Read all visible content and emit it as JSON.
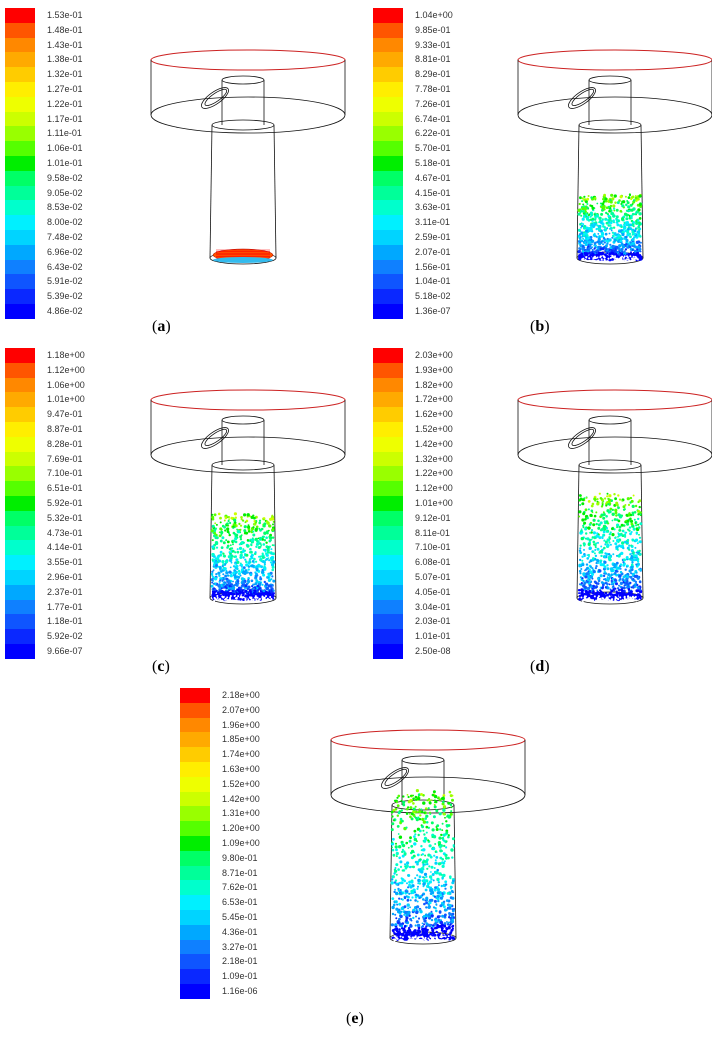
{
  "palette": [
    "#0000ff",
    "#0a28ff",
    "#0f55ff",
    "#0f80ff",
    "#00a8ff",
    "#00d4ff",
    "#00f0ff",
    "#00ffcc",
    "#00ff99",
    "#00ff66",
    "#00ee00",
    "#55ff00",
    "#99ff00",
    "#ccff00",
    "#eeff00",
    "#ffee00",
    "#ffcc00",
    "#ffaa00",
    "#ff8800",
    "#ff5500",
    "#ff0000"
  ],
  "panels": [
    {
      "id": "a",
      "caption": "a",
      "state": "packed",
      "labels": [
        "1.53e-01",
        "1.48e-01",
        "1.43e-01",
        "1.38e-01",
        "1.32e-01",
        "1.27e-01",
        "1.22e-01",
        "1.17e-01",
        "1.11e-01",
        "1.06e-01",
        "1.01e-01",
        "9.58e-02",
        "9.05e-02",
        "8.53e-02",
        "8.00e-02",
        "7.48e-02",
        "6.96e-02",
        "6.43e-02",
        "5.91e-02",
        "5.39e-02",
        "4.86e-02"
      ]
    },
    {
      "id": "b",
      "caption": "b",
      "state": "dispersed",
      "height": 0.12,
      "labels": [
        "1.04e+00",
        "9.85e-01",
        "9.33e-01",
        "8.81e-01",
        "8.29e-01",
        "7.78e-01",
        "7.26e-01",
        "6.74e-01",
        "6.22e-01",
        "5.70e-01",
        "5.18e-01",
        "4.67e-01",
        "4.15e-01",
        "3.63e-01",
        "3.11e-01",
        "2.59e-01",
        "2.07e-01",
        "1.56e-01",
        "1.04e-01",
        "5.18e-02",
        "1.36e-07"
      ]
    },
    {
      "id": "c",
      "caption": "c",
      "state": "dispersed",
      "height": 0.16,
      "labels": [
        "1.18e+00",
        "1.12e+00",
        "1.06e+00",
        "1.01e+00",
        "9.47e-01",
        "8.87e-01",
        "8.28e-01",
        "7.69e-01",
        "7.10e-01",
        "6.51e-01",
        "5.92e-01",
        "5.32e-01",
        "4.73e-01",
        "4.14e-01",
        "3.55e-01",
        "2.96e-01",
        "2.37e-01",
        "1.77e-01",
        "1.18e-01",
        "5.92e-02",
        "9.66e-07"
      ]
    },
    {
      "id": "d",
      "caption": "d",
      "state": "dispersed",
      "height": 0.2,
      "labels": [
        "2.03e+00",
        "1.93e+00",
        "1.82e+00",
        "1.72e+00",
        "1.62e+00",
        "1.52e+00",
        "1.42e+00",
        "1.32e+00",
        "1.22e+00",
        "1.12e+00",
        "1.01e+00",
        "9.12e-01",
        "8.11e-01",
        "7.10e-01",
        "6.08e-01",
        "5.07e-01",
        "4.05e-01",
        "3.04e-01",
        "2.03e-01",
        "1.01e-01",
        "2.50e-08"
      ]
    },
    {
      "id": "e",
      "caption": "e",
      "state": "dispersed",
      "height": 0.28,
      "labels": [
        "2.18e+00",
        "2.07e+00",
        "1.96e+00",
        "1.85e+00",
        "1.74e+00",
        "1.63e+00",
        "1.52e+00",
        "1.42e+00",
        "1.31e+00",
        "1.20e+00",
        "1.09e+00",
        "9.80e-01",
        "8.71e-01",
        "7.62e-01",
        "6.53e-01",
        "5.45e-01",
        "4.36e-01",
        "3.27e-01",
        "2.18e-01",
        "1.09e-01",
        "1.16e-06"
      ]
    }
  ]
}
